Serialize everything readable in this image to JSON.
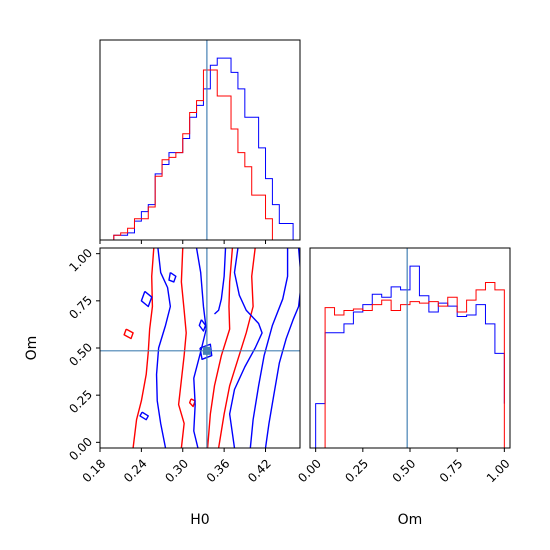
{
  "chart_data": {
    "type": "corner",
    "parameters": [
      "H0",
      "Om"
    ],
    "truths": {
      "H0": 0.335,
      "Om": 0.485
    },
    "truth_color": "#4682b4",
    "panels": [
      {
        "id": "hist-H0",
        "type": "histogram",
        "xlim": [
          0.18,
          0.47
        ],
        "bin_edges": [
          0.2,
          0.21,
          0.22,
          0.23,
          0.24,
          0.25,
          0.26,
          0.27,
          0.28,
          0.29,
          0.3,
          0.31,
          0.32,
          0.33,
          0.34,
          0.35,
          0.36,
          0.37,
          0.38,
          0.39,
          0.4,
          0.41,
          0.42,
          0.43,
          0.44,
          0.45,
          0.46,
          0.47
        ],
        "series": [
          {
            "color": "#0000ff",
            "counts": [
              2,
              2,
              3,
              8,
              12,
              15,
              28,
              32,
              37,
              37,
              43,
              52,
              57,
              64,
              74,
              77,
              77,
              71,
              64,
              52,
              52,
              39,
              26,
              15,
              7,
              7,
              0
            ]
          },
          {
            "color": "#ff0000",
            "counts": [
              2,
              3,
              5,
              9,
              9,
              14,
              27,
              34,
              35,
              37,
              45,
              54,
              59,
              72,
              72,
              61,
              61,
              47,
              37,
              31,
              19,
              19,
              9,
              0,
              0,
              0,
              0
            ]
          }
        ]
      },
      {
        "id": "hist-Om",
        "type": "histogram",
        "xlim": [
          -0.03,
          1.03
        ],
        "xlabel": "Om",
        "xticks": [
          0.0,
          0.25,
          0.5,
          0.75,
          1.0
        ],
        "xticklabels": [
          "0.00",
          "0.25",
          "0.50",
          "0.75",
          "1.00"
        ],
        "bin_edges": [
          0.0,
          0.05,
          0.1,
          0.15,
          0.2,
          0.25,
          0.3,
          0.35,
          0.4,
          0.45,
          0.5,
          0.55,
          0.6,
          0.65,
          0.7,
          0.75,
          0.8,
          0.85,
          0.9,
          0.95,
          1.0
        ],
        "series": [
          {
            "color": "#0000ff",
            "counts": [
              30,
              78,
              78,
              84,
              92,
              97,
              104,
              102,
              109,
              107,
              123,
              103,
              92,
              98,
              96,
              89,
              90,
              97,
              84,
              64,
              30
            ]
          },
          {
            "color": "#ff0000",
            "counts": [
              0,
              95,
              90,
              93,
              94,
              93,
              97,
              100,
              93,
              97,
              99,
              98,
              99,
              96,
              102,
              92,
              100,
              107,
              112,
              107,
              0
            ]
          }
        ]
      },
      {
        "id": "contour-Om-vs-H0",
        "type": "contour",
        "xlim": [
          0.18,
          0.47
        ],
        "ylim": [
          -0.03,
          1.03
        ],
        "xlabel": "H0",
        "ylabel": "Om",
        "xticks": [
          0.18,
          0.24,
          0.3,
          0.36,
          0.42
        ],
        "xticklabels": [
          "0.18",
          "0.24",
          "0.30",
          "0.36",
          "0.42"
        ],
        "yticks": [
          0.0,
          0.25,
          0.5,
          0.75,
          1.0
        ],
        "yticklabels": [
          "0.00",
          "0.25",
          "0.50",
          "0.75",
          "1.00"
        ],
        "series": [
          {
            "color": "#ff0000",
            "contours": [
              [
                [
                  0.258,
                  1.03
                ],
                [
                  0.255,
                  0.88
                ],
                [
                  0.256,
                  0.72
                ],
                [
                  0.252,
                  0.6
                ],
                [
                  0.25,
                  0.48
                ],
                [
                  0.247,
                  0.36
                ],
                [
                  0.24,
                  0.22
                ],
                [
                  0.233,
                  0.12
                ],
                [
                  0.228,
                  -0.03
                ]
              ],
              [
                [
                  0.3,
                  1.03
                ],
                [
                  0.298,
                  0.85
                ],
                [
                  0.302,
                  0.7
                ],
                [
                  0.305,
                  0.58
                ],
                [
                  0.302,
                  0.46
                ],
                [
                  0.298,
                  0.33
                ],
                [
                  0.294,
                  0.2
                ],
                [
                  0.302,
                  0.1
                ],
                [
                  0.298,
                  -0.03
                ]
              ],
              [
                [
                  0.372,
                  1.03
                ],
                [
                  0.368,
                  0.85
                ],
                [
                  0.367,
                  0.72
                ],
                [
                  0.368,
                  0.6
                ],
                [
                  0.356,
                  0.46
                ],
                [
                  0.346,
                  0.3
                ],
                [
                  0.34,
                  0.15
                ],
                [
                  0.336,
                  -0.03
                ]
              ],
              [
                [
                  0.405,
                  1.03
                ],
                [
                  0.4,
                  0.88
                ],
                [
                  0.402,
                  0.72
                ],
                [
                  0.392,
                  0.58
                ],
                [
                  0.38,
                  0.44
                ],
                [
                  0.368,
                  0.3
                ],
                [
                  0.36,
                  0.15
                ],
                [
                  0.352,
                  -0.03
                ]
              ],
              [
                [
                  0.218,
                  0.6
                ],
                [
                  0.228,
                  0.58
                ],
                [
                  0.225,
                  0.55
                ],
                [
                  0.215,
                  0.57
                ],
                [
                  0.218,
                  0.6
                ]
              ],
              [
                [
                  0.312,
                  0.23
                ],
                [
                  0.318,
                  0.22
                ],
                [
                  0.315,
                  0.19
                ],
                [
                  0.31,
                  0.21
                ],
                [
                  0.312,
                  0.23
                ]
              ]
            ]
          },
          {
            "color": "#0000ff",
            "contours": [
              [
                [
                  0.264,
                  1.03
                ],
                [
                  0.268,
                  0.9
                ],
                [
                  0.278,
                  0.82
                ],
                [
                  0.282,
                  0.72
                ],
                [
                  0.275,
                  0.62
                ],
                [
                  0.265,
                  0.5
                ],
                [
                  0.262,
                  0.36
                ],
                [
                  0.263,
                  0.22
                ],
                [
                  0.268,
                  0.1
                ],
                [
                  0.275,
                  -0.03
                ]
              ],
              [
                [
                  0.32,
                  1.03
                ],
                [
                  0.326,
                  0.9
                ],
                [
                  0.33,
                  0.72
                ],
                [
                  0.334,
                  0.6
                ],
                [
                  0.326,
                  0.48
                ],
                [
                  0.316,
                  0.34
                ],
                [
                  0.318,
                  0.2
                ],
                [
                  0.316,
                  0.06
                ],
                [
                  0.322,
                  -0.03
                ]
              ],
              [
                [
                  0.38,
                  1.03
                ],
                [
                  0.375,
                  0.9
                ],
                [
                  0.382,
                  0.78
                ],
                [
                  0.392,
                  0.7
                ],
                [
                  0.41,
                  0.63
                ],
                [
                  0.415,
                  0.58
                ],
                [
                  0.405,
                  0.5
                ],
                [
                  0.39,
                  0.4
                ],
                [
                  0.375,
                  0.28
                ],
                [
                  0.368,
                  0.15
                ],
                [
                  0.375,
                  -0.03
                ]
              ],
              [
                [
                  0.452,
                  1.03
                ],
                [
                  0.452,
                  0.88
                ],
                [
                  0.445,
                  0.76
                ],
                [
                  0.43,
                  0.62
                ],
                [
                  0.418,
                  0.46
                ],
                [
                  0.41,
                  0.3
                ],
                [
                  0.402,
                  0.12
                ],
                [
                  0.398,
                  -0.03
                ]
              ],
              [
                [
                  0.468,
                  1.03
                ],
                [
                  0.472,
                  0.85
                ],
                [
                  0.468,
                  0.72
                ],
                [
                  0.46,
                  0.65
                ],
                [
                  0.45,
                  0.55
                ],
                [
                  0.44,
                  0.42
                ],
                [
                  0.432,
                  0.25
                ],
                [
                  0.425,
                  0.1
                ],
                [
                  0.42,
                  -0.03
                ]
              ],
              [
                [
                  0.245,
                  0.8
                ],
                [
                  0.255,
                  0.77
                ],
                [
                  0.25,
                  0.72
                ],
                [
                  0.24,
                  0.75
                ],
                [
                  0.245,
                  0.8
                ]
              ],
              [
                [
                  0.282,
                  0.9
                ],
                [
                  0.29,
                  0.88
                ],
                [
                  0.287,
                  0.85
                ],
                [
                  0.28,
                  0.86
                ],
                [
                  0.282,
                  0.9
                ]
              ],
              [
                [
                  0.327,
                  0.65
                ],
                [
                  0.333,
                  0.62
                ],
                [
                  0.33,
                  0.59
                ],
                [
                  0.324,
                  0.62
                ],
                [
                  0.327,
                  0.65
                ]
              ],
              [
                [
                  0.325,
                  0.5
                ],
                [
                  0.34,
                  0.52
                ],
                [
                  0.342,
                  0.46
                ],
                [
                  0.328,
                  0.44
                ],
                [
                  0.325,
                  0.5
                ]
              ],
              [
                [
                  0.241,
                  0.16
                ],
                [
                  0.25,
                  0.14
                ],
                [
                  0.247,
                  0.12
                ],
                [
                  0.238,
                  0.14
                ],
                [
                  0.241,
                  0.16
                ]
              ],
              [
                [
                  0.362,
                  1.03
                ],
                [
                  0.36,
                  0.88
                ],
                [
                  0.356,
                  0.76
                ],
                [
                  0.352,
                  0.7
                ],
                [
                  0.346,
                  0.68
                ]
              ]
            ]
          }
        ]
      }
    ]
  }
}
